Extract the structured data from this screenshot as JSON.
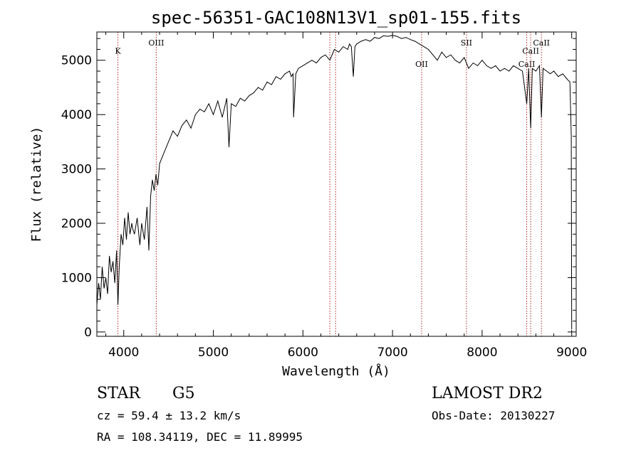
{
  "chart_data": {
    "type": "line",
    "title": "spec-56351-GAC108N13V1_sp01-155.fits",
    "xlabel": "Wavelength (Å)",
    "ylabel": "Flux (relative)",
    "xlim": [
      3700,
      9050
    ],
    "ylim": [
      -80,
      5520
    ],
    "x_ticks": [
      4000,
      5000,
      6000,
      7000,
      8000,
      9000
    ],
    "x_tick_labels": [
      "4000",
      "5000",
      "6000",
      "7000",
      "8000",
      "9000"
    ],
    "y_ticks": [
      0,
      1000,
      2000,
      3000,
      4000,
      5000
    ],
    "y_tick_labels": [
      "0",
      "1000",
      "2000",
      "3000",
      "4000",
      "5000"
    ],
    "grid": false,
    "series": [
      {
        "color": "#000000",
        "x": [
          3700,
          3720,
          3740,
          3760,
          3780,
          3800,
          3820,
          3840,
          3860,
          3880,
          3900,
          3920,
          3935,
          3950,
          3970,
          3990,
          4010,
          4030,
          4050,
          4070,
          4090,
          4100,
          4120,
          4150,
          4180,
          4200,
          4230,
          4260,
          4280,
          4300,
          4320,
          4340,
          4360,
          4380,
          4400,
          4450,
          4500,
          4550,
          4600,
          4650,
          4700,
          4750,
          4800,
          4850,
          4900,
          4950,
          5000,
          5050,
          5100,
          5150,
          5175,
          5200,
          5250,
          5300,
          5350,
          5400,
          5450,
          5500,
          5550,
          5600,
          5650,
          5700,
          5750,
          5800,
          5850,
          5870,
          5890,
          5896,
          5920,
          5950,
          6000,
          6050,
          6100,
          6150,
          6200,
          6250,
          6300,
          6350,
          6400,
          6450,
          6500,
          6520,
          6540,
          6563,
          6580,
          6600,
          6650,
          6700,
          6750,
          6800,
          6850,
          6900,
          6950,
          7000,
          7050,
          7100,
          7150,
          7200,
          7250,
          7300,
          7350,
          7400,
          7450,
          7500,
          7550,
          7600,
          7650,
          7700,
          7750,
          7800,
          7850,
          7900,
          7950,
          8000,
          8050,
          8100,
          8150,
          8200,
          8250,
          8300,
          8350,
          8400,
          8450,
          8498,
          8520,
          8542,
          8560,
          8600,
          8640,
          8662,
          8680,
          8720,
          8760,
          8800,
          8850,
          8900,
          8950,
          8980,
          8995,
          9000
        ],
        "y": [
          500,
          900,
          600,
          1200,
          800,
          1000,
          700,
          1400,
          1100,
          1300,
          900,
          1500,
          500,
          1200,
          1800,
          1600,
          2100,
          1700,
          2200,
          1800,
          2000,
          1900,
          1800,
          2100,
          1600,
          2000,
          1700,
          2300,
          1500,
          2500,
          2800,
          2600,
          2900,
          2700,
          3100,
          3300,
          3500,
          3700,
          3600,
          3800,
          3900,
          3750,
          4000,
          4100,
          4050,
          4200,
          4000,
          4250,
          3950,
          4300,
          3400,
          4200,
          4150,
          4300,
          4250,
          4350,
          4400,
          4500,
          4450,
          4600,
          4550,
          4700,
          4650,
          4750,
          4800,
          4700,
          4750,
          3950,
          4750,
          4850,
          4900,
          4950,
          5000,
          4950,
          5050,
          5100,
          5000,
          5200,
          5150,
          5250,
          5200,
          5300,
          5250,
          4700,
          5250,
          5300,
          5350,
          5380,
          5350,
          5420,
          5400,
          5450,
          5440,
          5460,
          5440,
          5400,
          5420,
          5380,
          5350,
          5300,
          5250,
          5200,
          5100,
          5000,
          5150,
          5050,
          5100,
          5000,
          4950,
          5050,
          4850,
          4950,
          4900,
          5000,
          4900,
          4850,
          4900,
          4800,
          4850,
          4800,
          4900,
          4850,
          4800,
          4200,
          4850,
          3750,
          4850,
          4800,
          4900,
          3950,
          4850,
          4800,
          4750,
          4800,
          4700,
          4750,
          4650,
          4600,
          3600,
          50
        ]
      }
    ],
    "annotations": [
      {
        "label": "K",
        "x": 3934,
        "label_y": 5120
      },
      {
        "label": "OIII",
        "x": 4363,
        "label_y": 5270
      },
      {
        "label": "",
        "x": 6300
      },
      {
        "label": "",
        "x": 6364
      },
      {
        "label": "OII",
        "x": 7325,
        "label_y": 4880
      },
      {
        "label": "SII",
        "x": 7825,
        "label_y": 5270
      },
      {
        "label": "CaII",
        "x": 8498,
        "label_y": 4880
      },
      {
        "label": "CaII",
        "x": 8542,
        "label_y": 5120
      },
      {
        "label": "CaII",
        "x": 8662,
        "label_y": 5270
      }
    ],
    "annotation_color": "#b22222"
  },
  "info": {
    "object_class": "STAR",
    "subclass": "G5",
    "survey": "LAMOST DR2",
    "cz": "cz = 59.4 ± 13.2 km/s",
    "obs_date": "Obs-Date: 20130227",
    "coords": "RA = 108.34119, DEC =  11.89995"
  }
}
